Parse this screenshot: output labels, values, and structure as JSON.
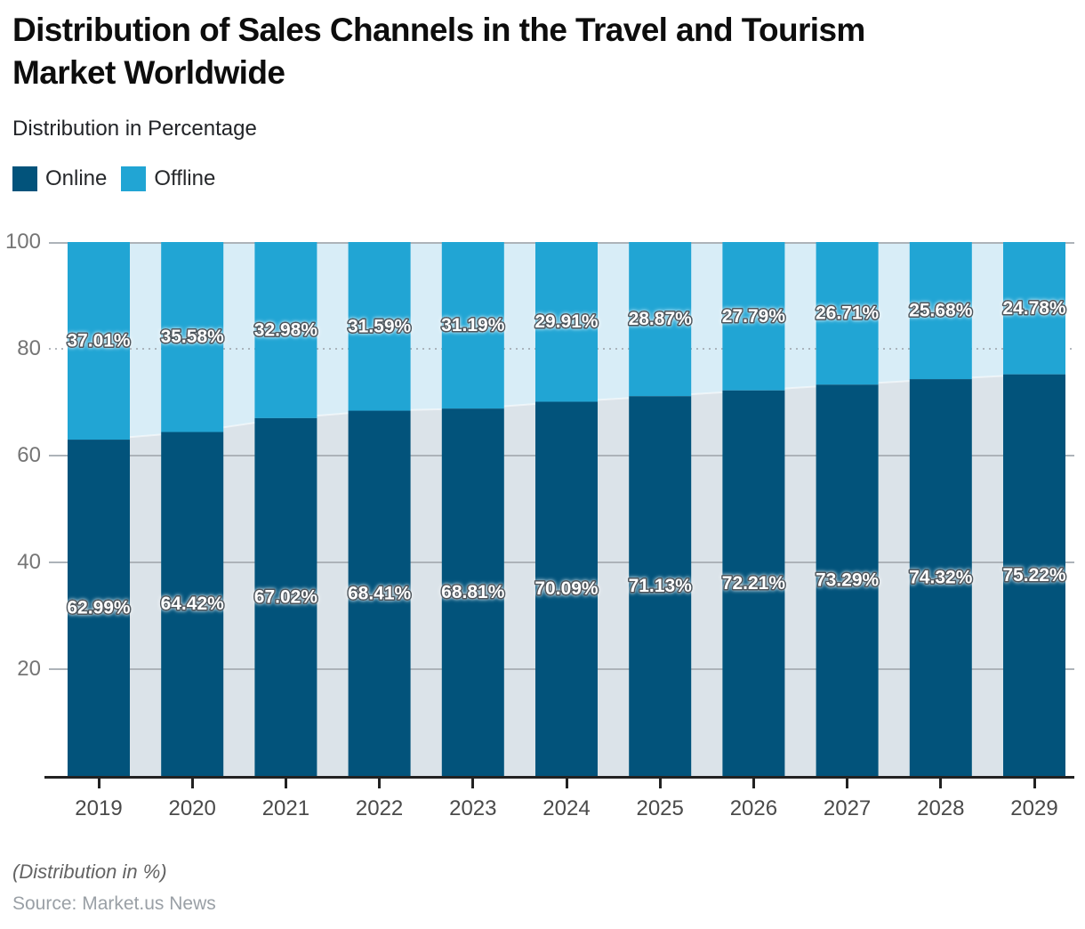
{
  "chart_data": {
    "type": "bar",
    "stacked": true,
    "title": "Distribution of Sales Channels in the Travel and Tourism\nMarket Worldwide",
    "subtitle": "Distribution in Percentage",
    "categories": [
      "2019",
      "2020",
      "2021",
      "2022",
      "2023",
      "2024",
      "2025",
      "2026",
      "2027",
      "2028",
      "2029"
    ],
    "series": [
      {
        "name": "Online",
        "color": "#02537b",
        "values": [
          62.99,
          64.42,
          67.02,
          68.41,
          68.81,
          70.09,
          71.13,
          72.21,
          73.29,
          74.32,
          75.22
        ]
      },
      {
        "name": "Offline",
        "color": "#21a5d4",
        "values": [
          37.01,
          35.58,
          32.98,
          31.59,
          31.19,
          29.91,
          28.87,
          27.79,
          26.71,
          25.68,
          24.78
        ]
      }
    ],
    "value_suffix": "%",
    "xlabel": "",
    "ylabel": "",
    "ylim": [
      0,
      100
    ],
    "yticks": [
      20,
      40,
      60,
      80,
      100
    ],
    "grid": true,
    "legend_position": "top-left",
    "background_area_colors": {
      "online": "#dbe3e9",
      "offline": "#d8edf7"
    },
    "gridline_color": "#adb3b9",
    "axis_color": "#222222"
  },
  "footer": {
    "note": "(Distribution in %)",
    "source": "Source: Market.us News"
  }
}
